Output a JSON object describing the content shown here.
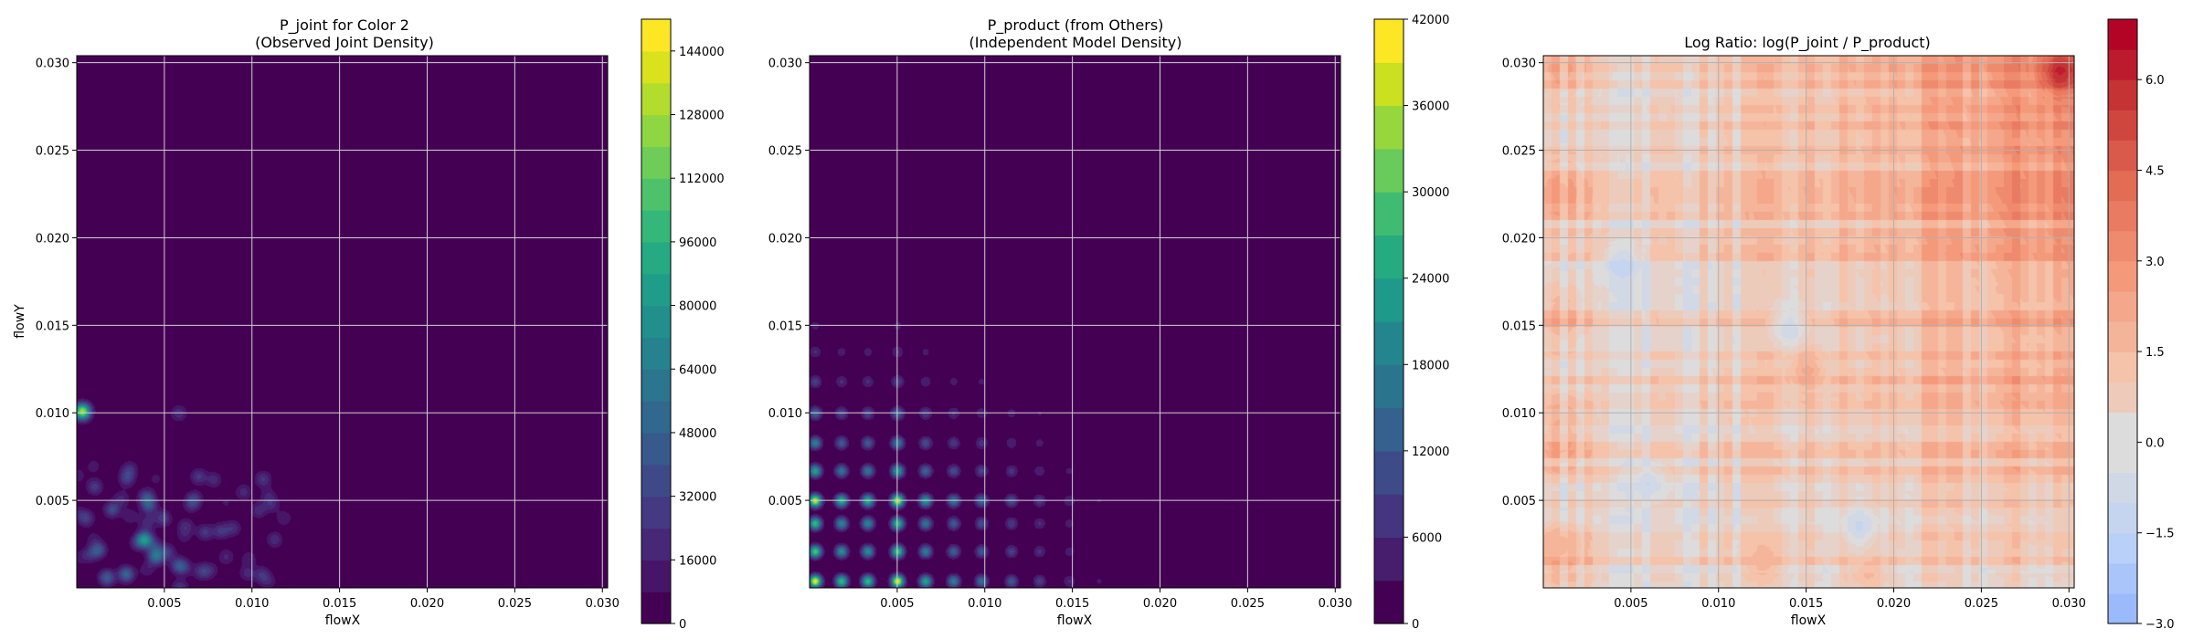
{
  "chart_data": [
    {
      "type": "heatmap",
      "title": "P_joint for Color 2\n(Observed Joint Density)",
      "xlabel": "flowX",
      "ylabel": "flowY",
      "xlim": [
        0.0,
        0.0303
      ],
      "ylim": [
        0.0,
        0.0304
      ],
      "xticks": [
        "0.005",
        "0.010",
        "0.015",
        "0.020",
        "0.025",
        "0.030"
      ],
      "xtick_values": [
        0.005,
        0.01,
        0.015,
        0.02,
        0.025,
        0.03
      ],
      "yticks": [
        "0.005",
        "0.010",
        "0.015",
        "0.020",
        "0.025",
        "0.030"
      ],
      "ytick_values": [
        0.005,
        0.01,
        0.015,
        0.02,
        0.025,
        0.03
      ],
      "grid": true,
      "colormap": "viridis",
      "colorbar": {
        "min": 0,
        "max": 152000,
        "ticks": [
          "0",
          "16000",
          "32000",
          "48000",
          "64000",
          "80000",
          "96000",
          "112000",
          "128000",
          "144000"
        ],
        "tick_values": [
          0,
          16000,
          32000,
          48000,
          64000,
          80000,
          96000,
          112000,
          128000,
          144000
        ]
      },
      "hotspots": [
        {
          "x": 0.0003,
          "y": 0.0101,
          "value": 130000
        },
        {
          "x": 0.0038,
          "y": 0.0028,
          "value": 60000
        },
        {
          "x": 0.0045,
          "y": 0.0018,
          "value": 55000
        },
        {
          "x": 0.0028,
          "y": 0.0008,
          "value": 50000
        },
        {
          "x": 0.0012,
          "y": 0.0022,
          "value": 42000
        },
        {
          "x": 0.0058,
          "y": 0.0013,
          "value": 40000
        },
        {
          "x": 0.002,
          "y": 0.0045,
          "value": 35000
        },
        {
          "x": 0.0049,
          "y": 0.004,
          "value": 30000
        },
        {
          "x": 0.001,
          "y": 0.0058,
          "value": 28000
        },
        {
          "x": 0.0073,
          "y": 0.0032,
          "value": 26000
        },
        {
          "x": 0.0058,
          "y": 0.01,
          "value": 22000
        },
        {
          "x": 0.0078,
          "y": 0.0062,
          "value": 20000
        },
        {
          "x": 0.0095,
          "y": 0.0055,
          "value": 20000
        },
        {
          "x": 0.003,
          "y": 0.0068,
          "value": 22000
        },
        {
          "x": 0.0085,
          "y": 0.0018,
          "value": 18000
        },
        {
          "x": 0.0118,
          "y": 0.004,
          "value": 16000
        },
        {
          "x": 0.0005,
          "y": 0.004,
          "value": 30000
        },
        {
          "x": 0.0017,
          "y": 0.0006,
          "value": 45000
        },
        {
          "x": 0.004,
          "y": 0.005,
          "value": 25000
        }
      ]
    },
    {
      "type": "heatmap",
      "title": "P_product (from Others)\n(Independent Model Density)",
      "xlabel": "flowX",
      "ylabel": "",
      "xlim": [
        0.0,
        0.0303
      ],
      "ylim": [
        0.0,
        0.0304
      ],
      "xticks": [
        "0.005",
        "0.010",
        "0.015",
        "0.020",
        "0.025",
        "0.030"
      ],
      "xtick_values": [
        0.005,
        0.01,
        0.015,
        0.02,
        0.025,
        0.03
      ],
      "yticks": [
        "0.005",
        "0.010",
        "0.015",
        "0.020",
        "0.025",
        "0.030"
      ],
      "ytick_values": [
        0.005,
        0.01,
        0.015,
        0.02,
        0.025,
        0.03
      ],
      "grid": true,
      "colormap": "viridis",
      "colorbar": {
        "min": 0,
        "max": 42000,
        "ticks": [
          "0",
          "6000",
          "12000",
          "18000",
          "24000",
          "30000",
          "36000",
          "42000"
        ],
        "tick_values": [
          0,
          6000,
          12000,
          18000,
          24000,
          30000,
          36000,
          42000
        ]
      },
      "x_marginal": [
        {
          "x": 0.0003,
          "w": 1.0
        },
        {
          "x": 0.0018,
          "w": 0.7
        },
        {
          "x": 0.0033,
          "w": 0.7
        },
        {
          "x": 0.005,
          "w": 1.0
        },
        {
          "x": 0.0066,
          "w": 0.6
        },
        {
          "x": 0.0082,
          "w": 0.45
        },
        {
          "x": 0.0098,
          "w": 0.4
        },
        {
          "x": 0.0115,
          "w": 0.3
        },
        {
          "x": 0.0131,
          "w": 0.22
        },
        {
          "x": 0.0148,
          "w": 0.15
        },
        {
          "x": 0.0165,
          "w": 0.08
        }
      ],
      "y_marginal": [
        {
          "y": 0.0004,
          "w": 1.0
        },
        {
          "y": 0.0021,
          "w": 0.75
        },
        {
          "y": 0.0037,
          "w": 0.7
        },
        {
          "y": 0.005,
          "w": 0.95
        },
        {
          "y": 0.0067,
          "w": 0.6
        },
        {
          "y": 0.0083,
          "w": 0.45
        },
        {
          "y": 0.01,
          "w": 0.35
        },
        {
          "y": 0.0118,
          "w": 0.22
        },
        {
          "y": 0.0135,
          "w": 0.15
        },
        {
          "y": 0.015,
          "w": 0.1
        },
        {
          "y": 0.0168,
          "w": 0.06
        }
      ]
    },
    {
      "type": "heatmap",
      "title": "Log Ratio: log(P_joint / P_product)",
      "xlabel": "flowX",
      "ylabel": "",
      "xlim": [
        0.0,
        0.0303
      ],
      "ylim": [
        0.0,
        0.0304
      ],
      "xticks": [
        "0.005",
        "0.010",
        "0.015",
        "0.020",
        "0.025",
        "0.030"
      ],
      "xtick_values": [
        0.005,
        0.01,
        0.015,
        0.02,
        0.025,
        0.03
      ],
      "yticks": [
        "0.005",
        "0.010",
        "0.015",
        "0.020",
        "0.025",
        "0.030"
      ],
      "ytick_values": [
        0.005,
        0.01,
        0.015,
        0.02,
        0.025,
        0.03
      ],
      "grid": true,
      "colormap": "coolwarm",
      "colorbar": {
        "min": -3.0,
        "max": 7.0,
        "ticks": [
          "−3.0",
          "−1.5",
          "0.0",
          "1.5",
          "3.0",
          "4.5",
          "6.0"
        ],
        "tick_values": [
          -3.0,
          -1.5,
          0.0,
          1.5,
          3.0,
          4.5,
          6.0
        ]
      },
      "features": [
        {
          "x": 0.0295,
          "y": 0.0295,
          "value": 6.8
        },
        {
          "x": 0.015,
          "y": 0.0125,
          "value": 2.5
        },
        {
          "x": 0.0125,
          "y": 0.0015,
          "value": 2.2
        },
        {
          "x": 0.0185,
          "y": 0.0008,
          "value": 2.0
        },
        {
          "x": 0.001,
          "y": 0.0025,
          "value": 2.0
        },
        {
          "x": 0.0045,
          "y": 0.0185,
          "value": -1.2
        },
        {
          "x": 0.006,
          "y": 0.006,
          "value": -0.8
        },
        {
          "x": 0.014,
          "y": 0.015,
          "value": -0.8
        },
        {
          "x": 0.018,
          "y": 0.0035,
          "value": -1.0
        }
      ]
    }
  ]
}
